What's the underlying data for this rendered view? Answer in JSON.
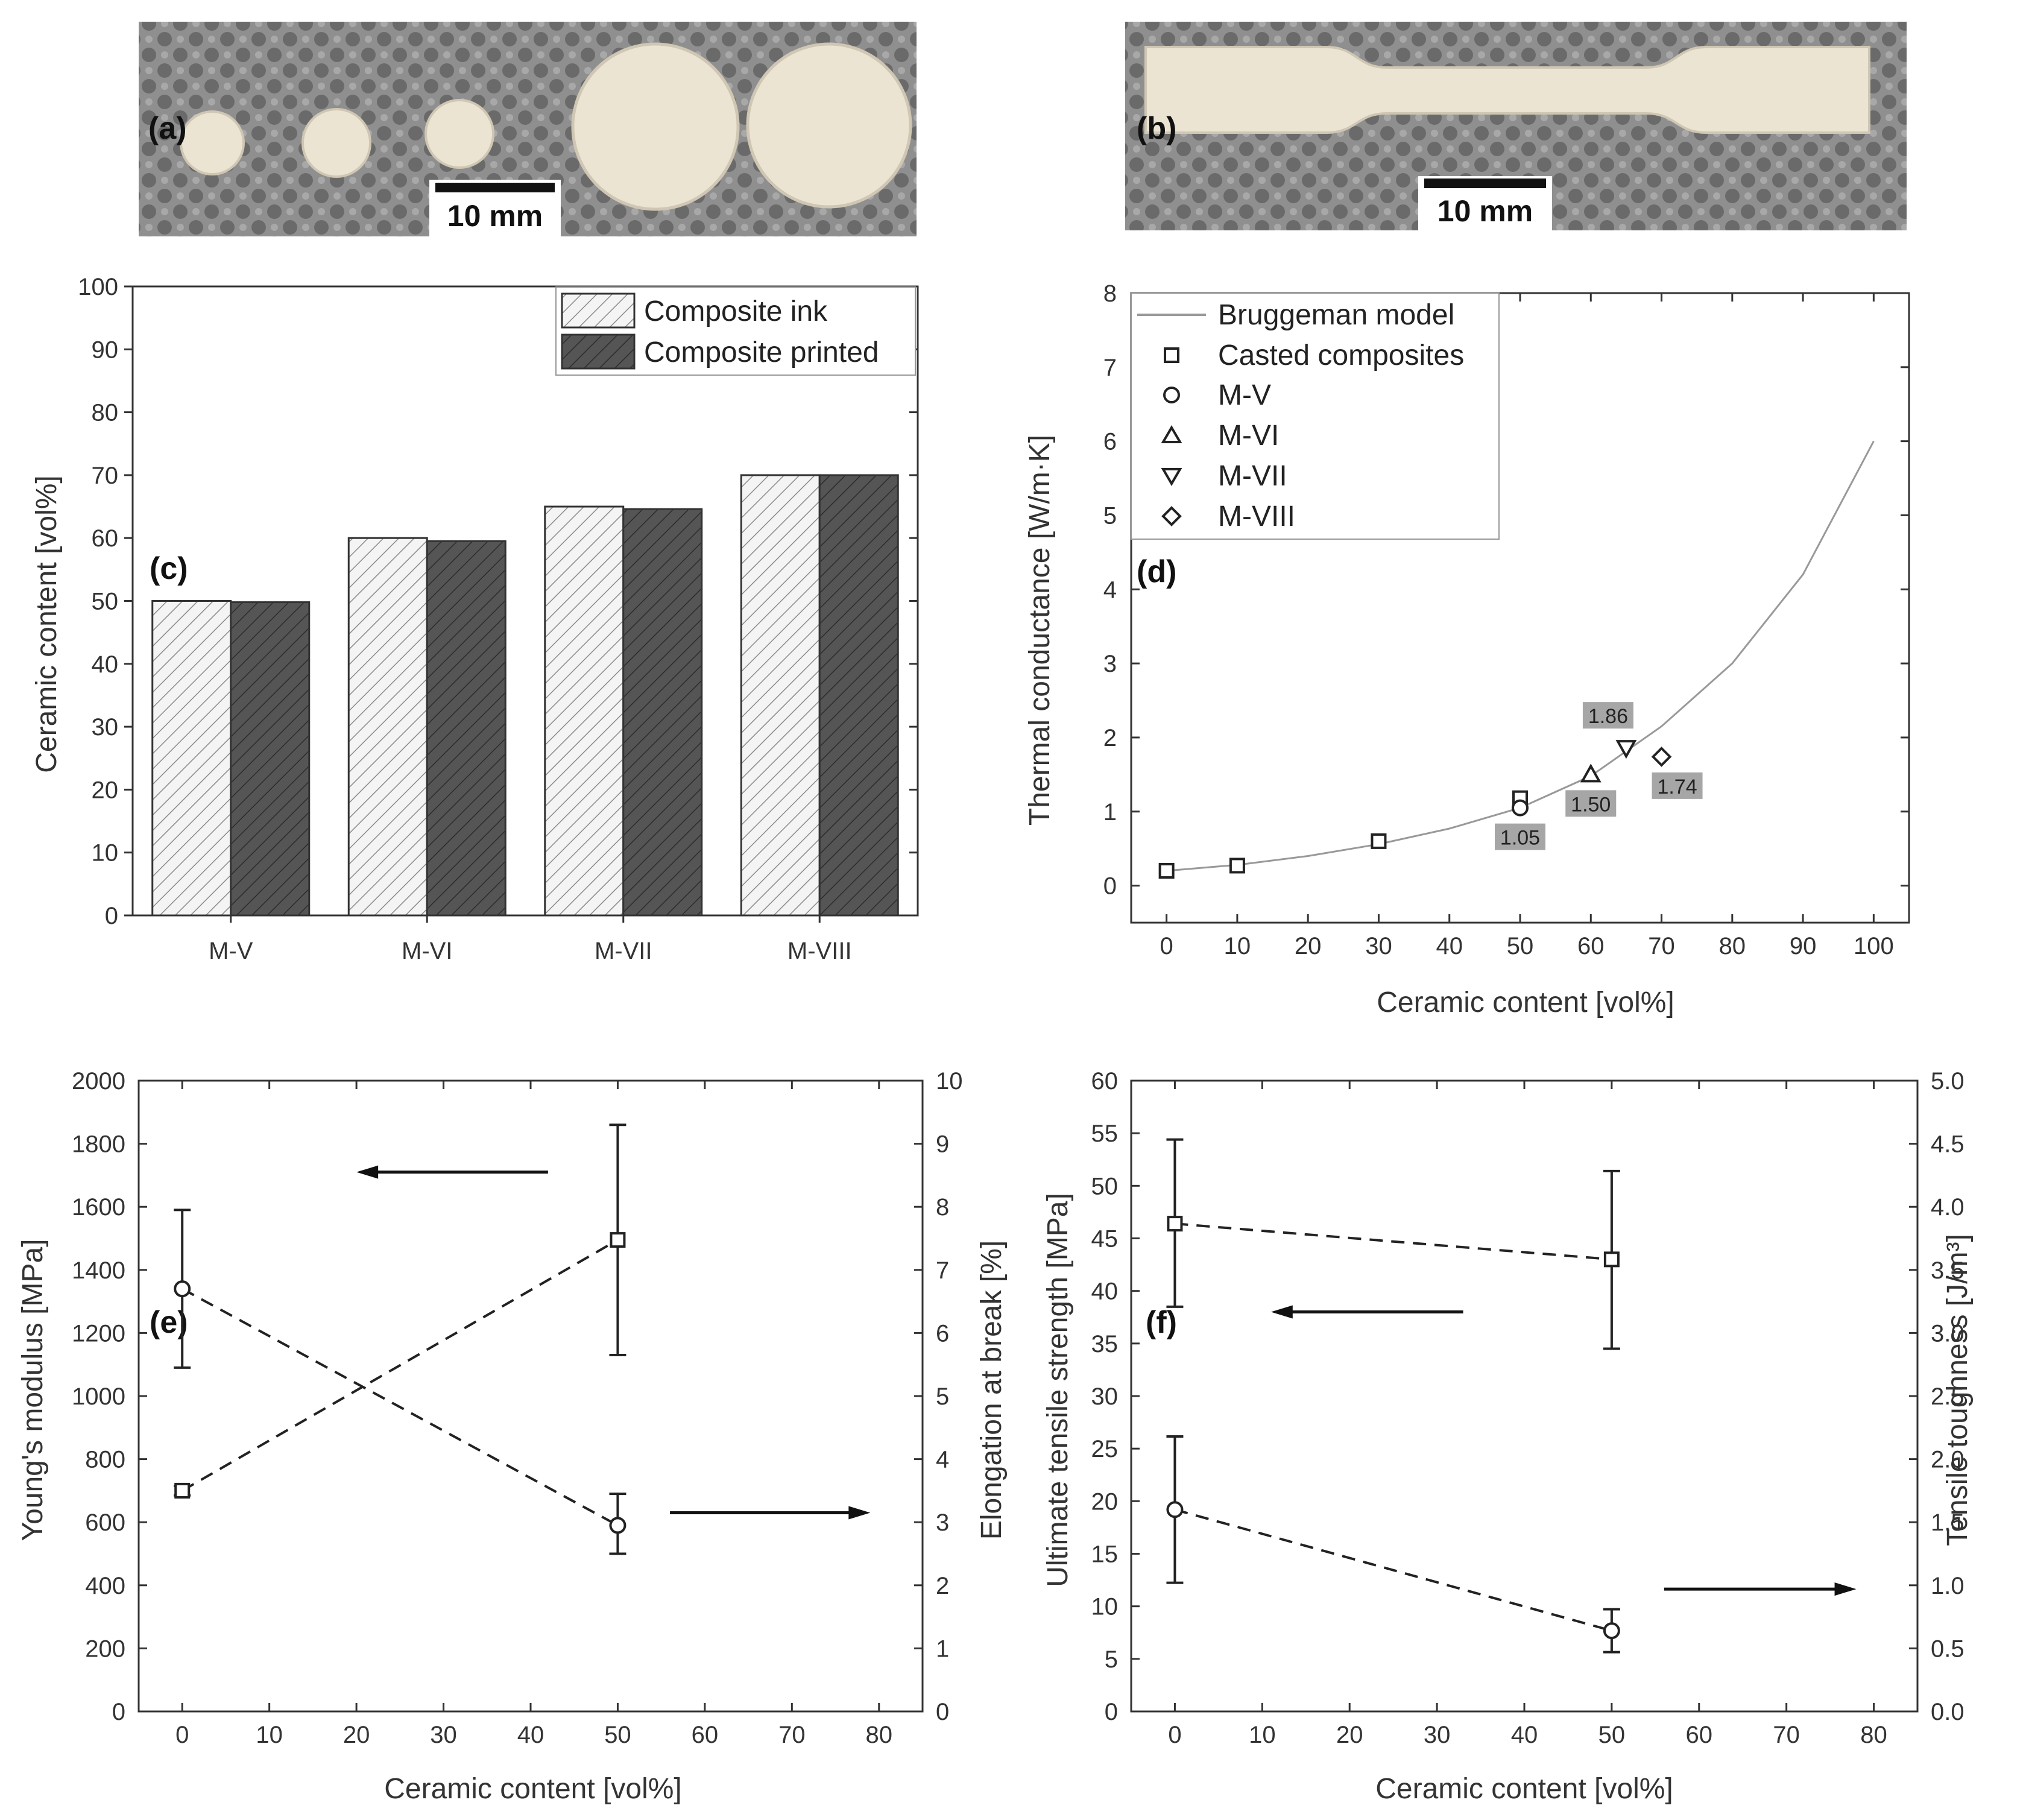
{
  "colors": {
    "photo_background": "#8f8f8f",
    "sample": "#ece4d2",
    "bar_ink_fill": "#f4f4f4",
    "bar_printed_fill": "#555555",
    "axis": "#333333",
    "model_line": "#999999",
    "value_label_bg": "#a6a6a6"
  },
  "photos": [
    {
      "label": "(a)",
      "scale_bar": "10 mm"
    },
    {
      "label": "(b)",
      "scale_bar": "10 mm"
    }
  ],
  "chart_data": [
    {
      "panel": "(c)",
      "type": "bar",
      "categories": [
        "M-V",
        "M-VI",
        "M-VII",
        "M-VIII"
      ],
      "series": [
        {
          "name": "Composite ink",
          "values": [
            50,
            60,
            65,
            70
          ]
        },
        {
          "name": "Composite printed",
          "values": [
            49.8,
            59.5,
            64.6,
            70
          ]
        }
      ],
      "ylabel": "Ceramic content [vol%]",
      "xlabel": "",
      "ylim": [
        0,
        100
      ],
      "yticks": [
        "0",
        "10",
        "20",
        "30",
        "40",
        "50",
        "60",
        "70",
        "80",
        "90",
        "100"
      ],
      "legend_position": "top-right"
    },
    {
      "panel": "(d)",
      "type": "scatter",
      "xlabel": "Ceramic content [vol%]",
      "ylabel": "Thermal conductance [W/m·K]",
      "xlim": [
        -5,
        105
      ],
      "ylim": [
        -0.5,
        8
      ],
      "xticks": [
        "0",
        "10",
        "20",
        "30",
        "40",
        "50",
        "60",
        "70",
        "80",
        "90",
        "100"
      ],
      "yticks": [
        "0",
        "1",
        "2",
        "3",
        "4",
        "5",
        "6",
        "7",
        "8"
      ],
      "model": {
        "name": "Bruggeman model",
        "x": [
          0,
          10,
          20,
          30,
          40,
          50,
          60,
          70,
          80,
          90,
          100
        ],
        "y": [
          0.2,
          0.28,
          0.4,
          0.56,
          0.77,
          1.05,
          1.48,
          2.15,
          3.0,
          4.2,
          6.0
        ]
      },
      "series": [
        {
          "name": "Casted composites",
          "marker": "square",
          "x": [
            0,
            10,
            30,
            50
          ],
          "y": [
            0.2,
            0.27,
            0.6,
            1.18
          ]
        },
        {
          "name": "M-V",
          "marker": "circle",
          "x": [
            50
          ],
          "y": [
            1.05
          ],
          "label": "1.05"
        },
        {
          "name": "M-VI",
          "marker": "triangle-up",
          "x": [
            60
          ],
          "y": [
            1.5
          ],
          "label": "1.50"
        },
        {
          "name": "M-VII",
          "marker": "triangle-down",
          "x": [
            65
          ],
          "y": [
            1.86
          ],
          "label": "1.86"
        },
        {
          "name": "M-VIII",
          "marker": "diamond",
          "x": [
            70
          ],
          "y": [
            1.74
          ],
          "label": "1.74"
        }
      ],
      "legend_position": "top-left"
    },
    {
      "panel": "(e)",
      "type": "line",
      "xlabel": "Ceramic content [vol%]",
      "ylabel_left": "Young's modulus [MPa]",
      "ylabel_right": "Elongation at break [%]",
      "xlim": [
        -5,
        85
      ],
      "ylim_left": [
        0,
        2000
      ],
      "ylim_right": [
        0,
        10
      ],
      "xticks": [
        "0",
        "10",
        "20",
        "30",
        "40",
        "50",
        "60",
        "70",
        "80"
      ],
      "yticks_left": [
        "0",
        "200",
        "400",
        "600",
        "800",
        "1000",
        "1200",
        "1400",
        "1600",
        "1800",
        "2000"
      ],
      "yticks_right": [
        "0",
        "1",
        "2",
        "3",
        "4",
        "5",
        "6",
        "7",
        "8",
        "9",
        "10"
      ],
      "series": [
        {
          "name": "Young's modulus",
          "axis": "left",
          "marker": "square",
          "x": [
            0,
            50
          ],
          "y": [
            700,
            1495
          ],
          "err_low": [
            685,
            1130
          ],
          "err_high": [
            715,
            1860
          ]
        },
        {
          "name": "Elongation at break",
          "axis": "right",
          "marker": "circle",
          "x": [
            0,
            50
          ],
          "y": [
            6.7,
            2.95
          ],
          "err_low": [
            5.45,
            2.5
          ],
          "err_high": [
            7.95,
            3.45
          ]
        }
      ],
      "arrows": [
        {
          "direction": "left",
          "axis": "left",
          "x_from": 42,
          "x_to": 20,
          "y": 1710
        },
        {
          "direction": "right",
          "axis": "right",
          "x_from": 56,
          "x_to": 79,
          "y": 3.15
        }
      ]
    },
    {
      "panel": "(f)",
      "type": "line",
      "xlabel": "Ceramic content [vol%]",
      "ylabel_left": "Ultimate tensile strength [MPa]",
      "ylabel_right": "Tensile toughness [J/m³]",
      "xlim": [
        -5,
        85
      ],
      "ylim_left": [
        0,
        60
      ],
      "ylim_right": [
        0,
        5
      ],
      "xticks": [
        "0",
        "10",
        "20",
        "30",
        "40",
        "50",
        "60",
        "70",
        "80"
      ],
      "yticks_left": [
        "0",
        "5",
        "10",
        "15",
        "20",
        "25",
        "30",
        "35",
        "40",
        "45",
        "50",
        "55",
        "60"
      ],
      "yticks_right": [
        "0.0",
        "0.5",
        "1.0",
        "1.5",
        "2.0",
        "2.5",
        "3.0",
        "3.5",
        "4.0",
        "4.5",
        "5.0"
      ],
      "series": [
        {
          "name": "Ultimate tensile strength",
          "axis": "left",
          "marker": "square",
          "x": [
            0,
            50
          ],
          "y": [
            46.4,
            43.0
          ],
          "err_low": [
            38.5,
            34.5
          ],
          "err_high": [
            54.4,
            51.4
          ]
        },
        {
          "name": "Tensile toughness",
          "axis": "right",
          "marker": "circle",
          "x": [
            0,
            50
          ],
          "y": [
            1.6,
            0.64
          ],
          "err_low": [
            1.02,
            0.47
          ],
          "err_high": [
            2.18,
            0.81
          ]
        }
      ],
      "arrows": [
        {
          "direction": "left",
          "axis": "left",
          "x_from": 33,
          "x_to": 11,
          "y": 38
        },
        {
          "direction": "right",
          "axis": "right",
          "x_from": 56,
          "x_to": 78,
          "y": 0.97
        }
      ]
    }
  ]
}
